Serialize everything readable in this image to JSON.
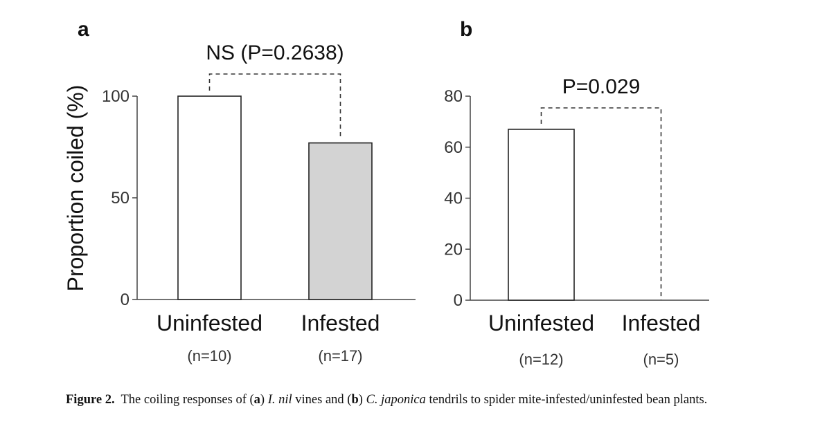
{
  "chart_data": [
    {
      "panel": "a",
      "type": "bar",
      "ylabel": "Proportion coiled (%)",
      "ylim": [
        0,
        100
      ],
      "yticks": [
        0,
        50,
        100
      ],
      "categories": [
        "Uninfested",
        "Infested"
      ],
      "sublabels": [
        "(n=10)",
        "(n=17)"
      ],
      "values": [
        100,
        77
      ],
      "bar_colors": [
        "#ffffff",
        "#d3d3d3"
      ],
      "annotation": "NS (P=0.2638)"
    },
    {
      "panel": "b",
      "type": "bar",
      "ylim": [
        0,
        80
      ],
      "yticks": [
        0,
        20,
        40,
        60,
        80
      ],
      "categories": [
        "Uninfested",
        "Infested"
      ],
      "sublabels": [
        "(n=12)",
        "(n=5)"
      ],
      "values": [
        67,
        0
      ],
      "bar_colors": [
        "#ffffff",
        "#ffffff"
      ],
      "annotation": "P=0.029"
    }
  ],
  "caption": {
    "label": "Figure 2.",
    "part1": "The coiling responses of (",
    "a_letter": "a",
    "part2": ") ",
    "species_a": "I. nil",
    "part3": " vines and (",
    "b_letter": "b",
    "part4": ") ",
    "species_b": "C. japonica",
    "part5": " tendrils to spider mite-infested/uninfested bean plants."
  }
}
